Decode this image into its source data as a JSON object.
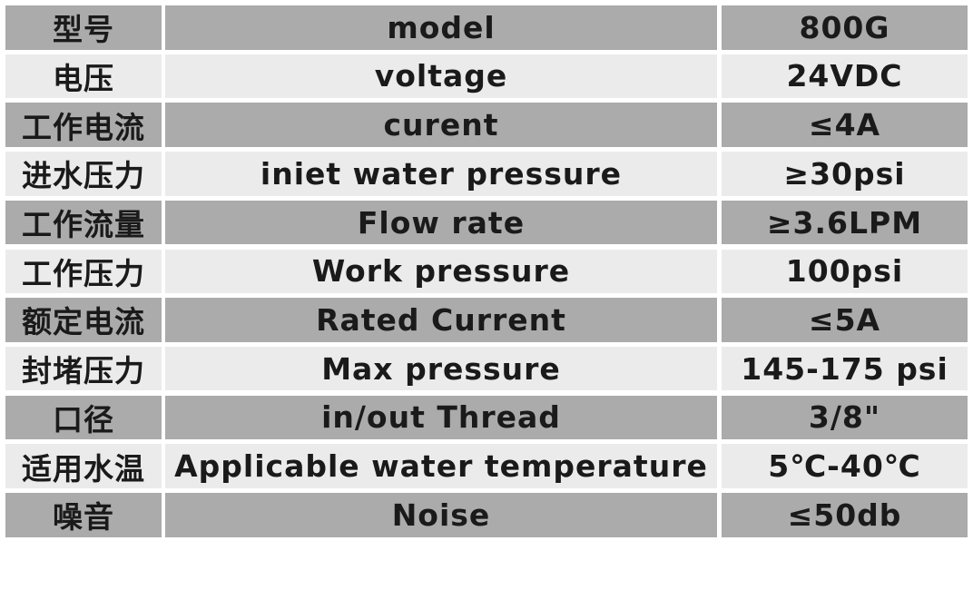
{
  "table": {
    "rows": [
      [
        "型号",
        "model",
        "800G"
      ],
      [
        "电压",
        "voltage",
        "24VDC"
      ],
      [
        "工作电流",
        "curent",
        "≤4A"
      ],
      [
        "进水压力",
        "iniet water pressure",
        "≥30psi"
      ],
      [
        "工作流量",
        "Flow rate",
        "≥3.6LPM"
      ],
      [
        "工作压力",
        "Work pressure",
        "100psi"
      ],
      [
        "额定电流",
        "Rated Current",
        "≤5A"
      ],
      [
        "封堵压力",
        "Max pressure",
        "145-175 psi"
      ],
      [
        "口径",
        "in/out Thread",
        "3/8\""
      ],
      [
        "适用水温",
        "Applicable water temperature",
        "5℃-40℃"
      ],
      [
        "噪音",
        "Noise",
        "≤50db"
      ]
    ]
  }
}
